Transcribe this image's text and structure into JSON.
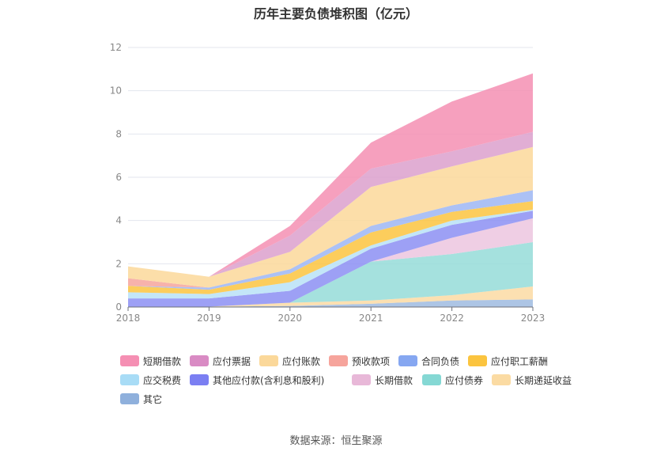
{
  "title": "历年主要负债堆积图（亿元）",
  "source": "数据来源：恒生聚源",
  "colors": [
    "#f25c8f",
    "#d977b8",
    "#fbd89a",
    "#f6a49c",
    "#86a7f1",
    "#fbc43f",
    "#a8dcf6",
    "#7b7ff2",
    "#e8b8d8",
    "#7fd8d4",
    "#fbdba3",
    "#8fb0dc"
  ],
  "chart_data": {
    "type": "area",
    "stacked": true,
    "categories": [
      "2018",
      "2019",
      "2020",
      "2021",
      "2022",
      "2023"
    ],
    "ylim": [
      0,
      12
    ],
    "yticks": [
      "0",
      "2",
      "4",
      "6",
      "8",
      "10",
      "12"
    ],
    "grid": true,
    "legend_position": "bottom",
    "series": [
      {
        "name": "其它",
        "values": [
          0.02,
          0.02,
          0.05,
          0.15,
          0.3,
          0.35
        ]
      },
      {
        "name": "长期递延收益",
        "values": [
          0.0,
          0.0,
          0.15,
          0.15,
          0.25,
          0.6
        ]
      },
      {
        "name": "应付债券",
        "values": [
          0.0,
          0.0,
          0.0,
          1.8,
          1.9,
          2.05
        ]
      },
      {
        "name": "长期借款",
        "values": [
          0.0,
          0.0,
          0.0,
          0.0,
          0.75,
          1.1
        ]
      },
      {
        "name": "其他应付款(含利息和股利)",
        "values": [
          0.38,
          0.38,
          0.55,
          0.6,
          0.6,
          0.35
        ]
      },
      {
        "name": "应交税费",
        "values": [
          0.28,
          0.2,
          0.4,
          0.15,
          0.2,
          0.05
        ]
      },
      {
        "name": "应付职工薪酬",
        "values": [
          0.3,
          0.2,
          0.4,
          0.6,
          0.4,
          0.4
        ]
      },
      {
        "name": "合同负债",
        "values": [
          0.0,
          0.1,
          0.2,
          0.3,
          0.3,
          0.5
        ]
      },
      {
        "name": "预收款项",
        "values": [
          0.35,
          0.0,
          0.0,
          0.0,
          0.0,
          0.0
        ]
      },
      {
        "name": "应付账款",
        "values": [
          0.55,
          0.5,
          0.8,
          1.8,
          1.8,
          2.0
        ]
      },
      {
        "name": "应付票据",
        "values": [
          0.0,
          0.0,
          0.75,
          0.85,
          0.7,
          0.7
        ]
      },
      {
        "name": "短期借款",
        "values": [
          0.0,
          0.0,
          0.45,
          1.2,
          2.3,
          2.7
        ]
      }
    ]
  },
  "legend": [
    {
      "label": "短期借款",
      "color": "#f58fb3"
    },
    {
      "label": "应付票据",
      "color": "#d98bc4"
    },
    {
      "label": "应付账款",
      "color": "#fbd89a"
    },
    {
      "label": "预收款项",
      "color": "#f6a49c"
    },
    {
      "label": "合同负债",
      "color": "#86a7f1"
    },
    {
      "label": "应付职工薪酬",
      "color": "#fbc43f"
    },
    {
      "label": "应交税费",
      "color": "#a8dcf6"
    },
    {
      "label": "其他应付款(含利息和股利)",
      "color": "#7b7ff2"
    },
    {
      "label": "长期借款",
      "color": "#e8b8d8"
    },
    {
      "label": "应付债券",
      "color": "#85d8d4"
    },
    {
      "label": "长期递延收益",
      "color": "#fbdba3"
    },
    {
      "label": "其它",
      "color": "#8fb0dc"
    }
  ]
}
